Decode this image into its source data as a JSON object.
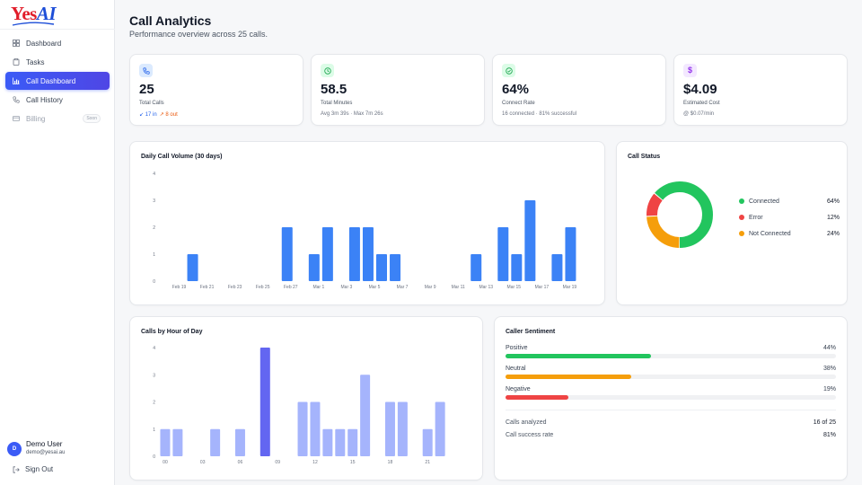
{
  "brand": {
    "yes": "Yes",
    "ai": "AI"
  },
  "sidebar": {
    "items": [
      {
        "label": "Dashboard",
        "icon": "grid-icon"
      },
      {
        "label": "Tasks",
        "icon": "clipboard-icon"
      },
      {
        "label": "Call Dashboard",
        "icon": "bar-chart-icon"
      },
      {
        "label": "Call History",
        "icon": "phone-icon"
      },
      {
        "label": "Billing",
        "icon": "credit-card-icon",
        "badge": "Soon"
      }
    ],
    "user": {
      "initial": "D",
      "name": "Demo User",
      "email": "demo@yesai.au"
    },
    "signout_label": "Sign Out"
  },
  "header": {
    "title": "Call Analytics",
    "subtitle": "Performance overview across 25 calls."
  },
  "stats": [
    {
      "value": "25",
      "label": "Total Calls",
      "in": "17 in",
      "out": "8 out",
      "icon": "phone-icon",
      "color": "#2563eb"
    },
    {
      "value": "58.5",
      "label": "Total Minutes",
      "sub": "Avg 3m 39s · Max 7m 26s",
      "icon": "clock-icon",
      "color": "#16a34a"
    },
    {
      "value": "64%",
      "label": "Connect Rate",
      "sub": "16 connected · 81% successful",
      "icon": "check-circle-icon",
      "color": "#16a34a"
    },
    {
      "value": "$4.09",
      "label": "Estimated Cost",
      "sub": "@ $0.07/min",
      "icon": "dollar-icon",
      "color": "#9333ea"
    }
  ],
  "chart_data": [
    {
      "type": "bar",
      "title": "Daily Call Volume (30 days)",
      "ylim": [
        0,
        4
      ],
      "yticks": [
        0,
        1,
        2,
        3,
        4
      ],
      "tick_labels": [
        "Feb 19",
        "Feb 21",
        "Feb 23",
        "Feb 25",
        "Feb 27",
        "Mar 1",
        "Mar 3",
        "Mar 5",
        "Mar 7",
        "Mar 9",
        "Mar 11",
        "Mar 13",
        "Mar 15",
        "Mar 17",
        "Mar 19"
      ],
      "values": [
        0,
        1,
        0,
        0,
        0,
        0,
        0,
        0,
        2,
        0,
        1,
        2,
        0,
        2,
        2,
        1,
        1,
        0,
        0,
        0,
        0,
        0,
        1,
        0,
        2,
        1,
        3,
        0,
        1,
        2,
        0
      ],
      "color": "#3b82f6"
    },
    {
      "type": "pie",
      "title": "Call Status",
      "slices": [
        {
          "label": "Connected",
          "pct": 64,
          "pct_label": "64%",
          "color": "#22c55e"
        },
        {
          "label": "Error",
          "pct": 12,
          "pct_label": "12%",
          "color": "#ef4444"
        },
        {
          "label": "Not Connected",
          "pct": 24,
          "pct_label": "24%",
          "color": "#f59e0b"
        }
      ]
    },
    {
      "type": "bar",
      "title": "Calls by Hour of Day",
      "ylim": [
        0,
        4
      ],
      "yticks": [
        0,
        1,
        2,
        3,
        4
      ],
      "tick_labels": [
        "00",
        "03",
        "06",
        "09",
        "12",
        "15",
        "18",
        "21"
      ],
      "values": [
        1,
        1,
        0,
        0,
        1,
        0,
        1,
        0,
        4,
        0,
        0,
        2,
        2,
        1,
        1,
        1,
        3,
        0,
        2,
        2,
        0,
        1,
        2,
        0
      ],
      "color": "#a5b4fc",
      "highlight_index": 8,
      "highlight_color": "#6366f1"
    }
  ],
  "sentiment": {
    "title": "Caller Sentiment",
    "rows": [
      {
        "label": "Positive",
        "pct": 44,
        "pct_label": "44%",
        "color": "#22c55e"
      },
      {
        "label": "Neutral",
        "pct": 38,
        "pct_label": "38%",
        "color": "#f59e0b"
      },
      {
        "label": "Negative",
        "pct": 19,
        "pct_label": "19%",
        "color": "#ef4444"
      }
    ],
    "stats": [
      {
        "label": "Calls analyzed",
        "value": "16 of 25"
      },
      {
        "label": "Call success rate",
        "value": "81%"
      }
    ]
  }
}
